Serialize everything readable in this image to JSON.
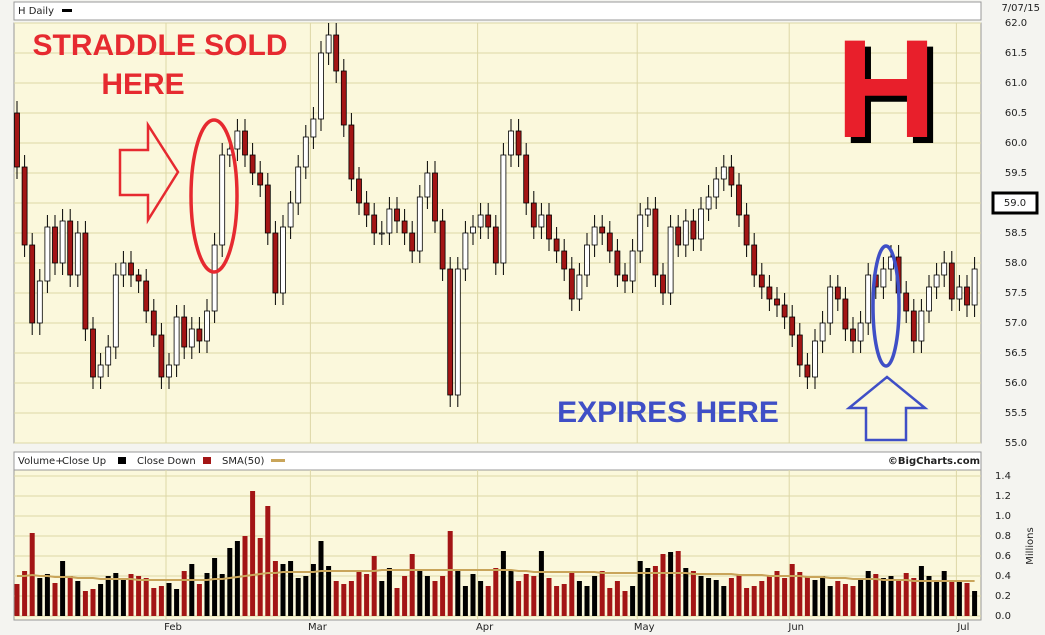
{
  "chart_data": {
    "type": "candlestick",
    "title": "H Daily",
    "date": "7/07/15",
    "source": "©BigCharts.com",
    "categories": [
      null,
      null,
      null,
      null,
      null,
      null,
      null,
      null,
      null,
      null,
      null,
      null,
      null,
      null,
      null,
      null,
      null,
      null,
      null,
      null,
      "Feb",
      null,
      null,
      null,
      null,
      null,
      null,
      null,
      null,
      null,
      null,
      null,
      null,
      null,
      null,
      null,
      null,
      null,
      null,
      "Mar",
      null,
      null,
      null,
      null,
      null,
      null,
      null,
      null,
      null,
      null,
      null,
      null,
      null,
      null,
      null,
      null,
      null,
      null,
      null,
      null,
      null,
      "Apr",
      null,
      null,
      null,
      null,
      null,
      null,
      null,
      null,
      null,
      null,
      null,
      null,
      null,
      null,
      null,
      null,
      null,
      null,
      null,
      null,
      "May",
      null,
      null,
      null,
      null,
      null,
      null,
      null,
      null,
      null,
      null,
      null,
      null,
      null,
      null,
      null,
      null,
      null,
      null,
      null,
      "Jun",
      null,
      null,
      null,
      null,
      null,
      null,
      null,
      null,
      null,
      null,
      null,
      null,
      null,
      null,
      null,
      null,
      null,
      null,
      null,
      null,
      null,
      "Jul",
      null,
      null
    ],
    "open": [
      60.5,
      59.6,
      58.3,
      57.0,
      57.7,
      58.6,
      58.0,
      58.7,
      57.8,
      58.5,
      56.9,
      56.1,
      56.3,
      56.6,
      57.8,
      58.0,
      57.8,
      57.7,
      57.2,
      56.8,
      56.1,
      56.3,
      57.1,
      56.6,
      56.9,
      56.7,
      57.2,
      58.3,
      59.8,
      59.9,
      60.2,
      59.8,
      59.5,
      59.3,
      58.5,
      57.5,
      58.6,
      59.0,
      59.6,
      60.1,
      60.4,
      61.5,
      61.8,
      61.2,
      60.3,
      59.4,
      59.0,
      58.8,
      58.5,
      58.5,
      58.9,
      58.7,
      58.5,
      58.2,
      59.1,
      59.5,
      58.7,
      57.9,
      55.8,
      57.9,
      58.5,
      58.6,
      58.8,
      58.6,
      58.0,
      59.8,
      60.2,
      59.8,
      59.0,
      58.6,
      58.8,
      58.4,
      58.2,
      57.9,
      57.4,
      57.8,
      58.3,
      58.6,
      58.5,
      58.2,
      57.8,
      57.7,
      58.2,
      58.8,
      58.9,
      57.8,
      57.5,
      58.6,
      58.3,
      58.7,
      58.4,
      58.9,
      59.1,
      59.4,
      59.6,
      59.3,
      58.8,
      58.3,
      57.8,
      57.6,
      57.4,
      57.3,
      57.1,
      56.8,
      56.3,
      56.1,
      56.7,
      57.0,
      57.6,
      57.4,
      56.9,
      56.7,
      57.0,
      57.8,
      57.6,
      57.9,
      58.1,
      57.5,
      57.2,
      56.7,
      57.2,
      57.6,
      57.8,
      58.0,
      57.4,
      57.6,
      57.3
    ],
    "high": [
      60.7,
      59.8,
      58.5,
      57.9,
      58.8,
      58.8,
      58.9,
      58.9,
      58.7,
      58.7,
      57.1,
      56.5,
      56.8,
      58.0,
      58.2,
      58.2,
      57.9,
      57.9,
      57.4,
      57.0,
      56.5,
      57.3,
      57.3,
      57.1,
      57.1,
      57.4,
      58.5,
      60.0,
      60.1,
      60.4,
      60.4,
      60.0,
      59.7,
      59.5,
      58.7,
      58.8,
      59.2,
      59.8,
      60.3,
      60.6,
      61.7,
      62.0,
      62.0,
      61.4,
      60.5,
      59.6,
      59.2,
      59.0,
      58.7,
      59.1,
      59.1,
      58.9,
      58.7,
      59.3,
      59.7,
      59.7,
      58.9,
      58.1,
      58.1,
      58.7,
      58.8,
      59.0,
      59.0,
      58.8,
      60.0,
      60.4,
      60.4,
      60.0,
      59.2,
      59.0,
      59.0,
      58.6,
      58.4,
      58.1,
      58.0,
      58.5,
      58.8,
      58.8,
      58.7,
      58.4,
      58.0,
      58.4,
      59.0,
      59.1,
      59.1,
      58.0,
      58.8,
      58.8,
      58.9,
      58.9,
      59.1,
      59.3,
      59.6,
      59.8,
      59.8,
      59.5,
      59.0,
      58.5,
      58.0,
      57.8,
      57.6,
      57.5,
      57.3,
      57.0,
      56.5,
      56.9,
      57.2,
      57.8,
      57.8,
      57.6,
      57.1,
      57.2,
      58.0,
      58.0,
      58.1,
      58.3,
      58.3,
      57.7,
      57.4,
      57.4,
      57.8,
      58.0,
      58.2,
      58.2,
      57.8,
      57.8,
      58.1
    ],
    "low": [
      59.4,
      58.1,
      56.8,
      56.8,
      57.5,
      57.8,
      57.8,
      57.6,
      57.6,
      56.7,
      55.9,
      55.9,
      56.1,
      56.4,
      57.6,
      57.6,
      57.5,
      57.0,
      56.6,
      55.9,
      55.9,
      56.1,
      56.4,
      56.4,
      56.5,
      56.5,
      57.0,
      58.1,
      59.6,
      59.7,
      59.6,
      59.3,
      59.1,
      58.3,
      57.3,
      57.3,
      58.4,
      58.8,
      59.4,
      59.9,
      60.2,
      61.3,
      61.0,
      60.1,
      59.2,
      58.8,
      58.6,
      58.3,
      58.3,
      58.3,
      58.5,
      58.3,
      58.0,
      58.0,
      58.9,
      58.5,
      57.7,
      55.6,
      55.6,
      57.7,
      58.3,
      58.4,
      58.4,
      57.8,
      57.8,
      59.6,
      59.6,
      58.8,
      58.4,
      58.4,
      58.2,
      58.0,
      57.7,
      57.2,
      57.2,
      57.6,
      58.1,
      58.3,
      58.0,
      57.6,
      57.5,
      57.5,
      58.0,
      58.6,
      57.6,
      57.3,
      57.3,
      58.1,
      58.1,
      58.2,
      58.2,
      58.7,
      58.9,
      59.2,
      59.1,
      58.6,
      58.1,
      57.6,
      57.4,
      57.2,
      57.1,
      56.9,
      56.6,
      56.1,
      55.9,
      55.9,
      56.5,
      56.8,
      57.2,
      56.7,
      56.5,
      56.5,
      56.8,
      57.4,
      57.4,
      57.7,
      57.3,
      57.0,
      56.5,
      56.5,
      57.0,
      57.4,
      57.6,
      57.2,
      57.2,
      57.1,
      57.1
    ],
    "close": [
      59.6,
      58.3,
      57.0,
      57.7,
      58.6,
      58.0,
      58.7,
      57.8,
      58.5,
      56.9,
      56.1,
      56.3,
      56.6,
      57.8,
      58.0,
      57.8,
      57.7,
      57.2,
      56.8,
      56.1,
      56.3,
      57.1,
      56.6,
      56.9,
      56.7,
      57.2,
      58.3,
      59.8,
      59.9,
      60.2,
      59.8,
      59.5,
      59.3,
      58.5,
      57.5,
      58.6,
      59.0,
      59.6,
      60.1,
      60.4,
      61.5,
      61.8,
      61.2,
      60.3,
      59.4,
      59.0,
      58.8,
      58.5,
      58.5,
      58.9,
      58.7,
      58.5,
      58.2,
      59.1,
      59.5,
      58.7,
      57.9,
      55.8,
      57.9,
      58.5,
      58.6,
      58.8,
      58.6,
      58.0,
      59.8,
      60.2,
      59.8,
      59.0,
      58.6,
      58.8,
      58.4,
      58.2,
      57.9,
      57.4,
      57.8,
      58.3,
      58.6,
      58.5,
      58.2,
      57.8,
      57.7,
      58.2,
      58.8,
      58.9,
      57.8,
      57.5,
      58.6,
      58.3,
      58.7,
      58.4,
      58.9,
      59.1,
      59.4,
      59.6,
      59.3,
      58.8,
      58.3,
      57.8,
      57.6,
      57.4,
      57.3,
      57.1,
      56.8,
      56.3,
      56.1,
      56.7,
      57.0,
      57.6,
      57.4,
      56.9,
      56.7,
      57.0,
      57.8,
      57.6,
      57.9,
      58.1,
      57.5,
      57.2,
      56.7,
      57.2,
      57.6,
      57.8,
      58.0,
      57.4,
      57.6,
      57.3,
      57.9
    ],
    "candle_up_color": "#ffffff",
    "ylim": [
      55,
      62
    ],
    "yticks": [
      {
        "value": 55,
        "label": "55.0"
      },
      {
        "value": 55.5,
        "label": "55.5"
      },
      {
        "value": 56,
        "label": "56.0"
      },
      {
        "value": 56.5,
        "label": "56.5"
      },
      {
        "value": 57,
        "label": "57.0"
      },
      {
        "value": 57.5,
        "label": "57.5"
      },
      {
        "value": 58,
        "label": "58.0"
      },
      {
        "value": 58.5,
        "label": "58.5"
      },
      {
        "value": 59,
        "label": "59.0"
      },
      {
        "value": 59.5,
        "label": "59.5"
      },
      {
        "value": 60,
        "label": "60.0"
      },
      {
        "value": 60.5,
        "label": "60.5"
      },
      {
        "value": 61,
        "label": "61.0"
      },
      {
        "value": 61.5,
        "label": "61.5"
      },
      {
        "value": 62,
        "label": "62.0"
      }
    ],
    "highlight_tick": {
      "value": 59,
      "label": "59.0"
    },
    "grid": true,
    "annotations": [
      "STRADDLE SOLD",
      "HERE",
      "EXPIRES HERE",
      "H"
    ],
    "volume": {
      "label": "Volume+",
      "ylabel": "Millions",
      "values": [
        0.32,
        0.45,
        0.83,
        0.38,
        0.42,
        0.33,
        0.55,
        0.4,
        0.35,
        0.25,
        0.27,
        0.32,
        0.4,
        0.43,
        0.36,
        0.42,
        0.4,
        0.38,
        0.28,
        0.3,
        0.33,
        0.27,
        0.45,
        0.52,
        0.32,
        0.43,
        0.58,
        0.42,
        0.68,
        0.75,
        0.8,
        1.25,
        0.78,
        1.1,
        0.55,
        0.52,
        0.55,
        0.38,
        0.4,
        0.52,
        0.75,
        0.5,
        0.35,
        0.32,
        0.35,
        0.45,
        0.42,
        0.6,
        0.35,
        0.48,
        0.28,
        0.4,
        0.62,
        0.45,
        0.4,
        0.35,
        0.4,
        0.85,
        0.45,
        0.3,
        0.42,
        0.35,
        0.3,
        0.48,
        0.65,
        0.45,
        0.35,
        0.42,
        0.4,
        0.65,
        0.38,
        0.3,
        0.32,
        0.45,
        0.35,
        0.3,
        0.4,
        0.45,
        0.28,
        0.35,
        0.25,
        0.3,
        0.55,
        0.48,
        0.5,
        0.62,
        0.64,
        0.65,
        0.48,
        0.45,
        0.4,
        0.38,
        0.36,
        0.3,
        0.38,
        0.42,
        0.28,
        0.3,
        0.35,
        0.4,
        0.45,
        0.38,
        0.52,
        0.44,
        0.4,
        0.36,
        0.4,
        0.3,
        0.35,
        0.32,
        0.3,
        0.38,
        0.45,
        0.42,
        0.38,
        0.4,
        0.35,
        0.43,
        0.38,
        0.5,
        0.4,
        0.35,
        0.45,
        0.35,
        0.36,
        0.33,
        0.25
      ],
      "series": [
        {
          "name": "Close Up",
          "color": "#000000"
        },
        {
          "name": "Close Down",
          "color": "#a31515"
        },
        {
          "name": "SMA(50)",
          "color": "#c9a55a",
          "values": [
            0.4,
            0.4,
            0.41,
            0.4,
            0.4,
            0.39,
            0.39,
            0.39,
            0.38,
            0.38,
            0.38,
            0.37,
            0.37,
            0.37,
            0.37,
            0.37,
            0.36,
            0.36,
            0.36,
            0.36,
            0.36,
            0.36,
            0.36,
            0.36,
            0.36,
            0.36,
            0.37,
            0.37,
            0.38,
            0.39,
            0.4,
            0.41,
            0.42,
            0.43,
            0.43,
            0.44,
            0.44,
            0.44,
            0.44,
            0.44,
            0.45,
            0.45,
            0.45,
            0.45,
            0.45,
            0.45,
            0.45,
            0.45,
            0.46,
            0.46,
            0.46,
            0.46,
            0.46,
            0.46,
            0.46,
            0.46,
            0.46,
            0.46,
            0.46,
            0.46,
            0.46,
            0.46,
            0.46,
            0.46,
            0.46,
            0.46,
            0.45,
            0.45,
            0.44,
            0.44,
            0.44,
            0.44,
            0.44,
            0.44,
            0.44,
            0.44,
            0.44,
            0.43,
            0.43,
            0.43,
            0.43,
            0.43,
            0.43,
            0.43,
            0.43,
            0.43,
            0.43,
            0.43,
            0.43,
            0.42,
            0.42,
            0.42,
            0.42,
            0.42,
            0.42,
            0.41,
            0.41,
            0.41,
            0.41,
            0.4,
            0.4,
            0.4,
            0.4,
            0.4,
            0.39,
            0.39,
            0.39,
            0.38,
            0.38,
            0.38,
            0.37,
            0.37,
            0.37,
            0.37,
            0.36,
            0.36,
            0.36,
            0.36,
            0.35,
            0.35,
            0.35,
            0.35,
            0.35,
            0.35,
            0.35,
            0.35,
            0.35
          ]
        }
      ],
      "ylim": [
        0,
        1.4
      ],
      "yticks": [
        {
          "value": 0,
          "label": "0.0"
        },
        0.2,
        0.4,
        0.6,
        0.8,
        {
          "value": 1,
          "label": "1.0"
        },
        1.2,
        1.4
      ]
    }
  }
}
